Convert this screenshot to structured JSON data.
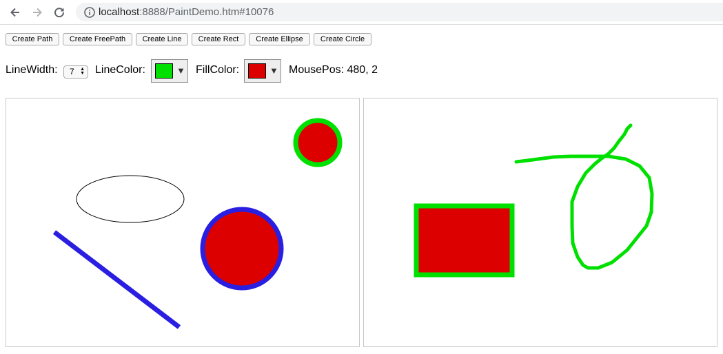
{
  "browser": {
    "url_host": "localhost",
    "url_rest": ":8888/PaintDemo.htm#10076"
  },
  "toolbar": {
    "buttons": [
      "Create Path",
      "Create FreePath",
      "Create Line",
      "Create Rect",
      "Create Ellipse",
      "Create Circle"
    ]
  },
  "controls": {
    "line_width_label": "LineWidth:",
    "line_width_value": "7",
    "line_color_label": "LineColor:",
    "line_color": "#00e000",
    "fill_color_label": "FillColor:",
    "fill_color": "#dd0000",
    "mouse_pos_label": "MousePos:",
    "mouse_pos_value": "480, 2"
  },
  "colors": {
    "blue": "#2a1fe0",
    "green": "#00e000",
    "red": "#dd0000",
    "black": "#000000"
  }
}
